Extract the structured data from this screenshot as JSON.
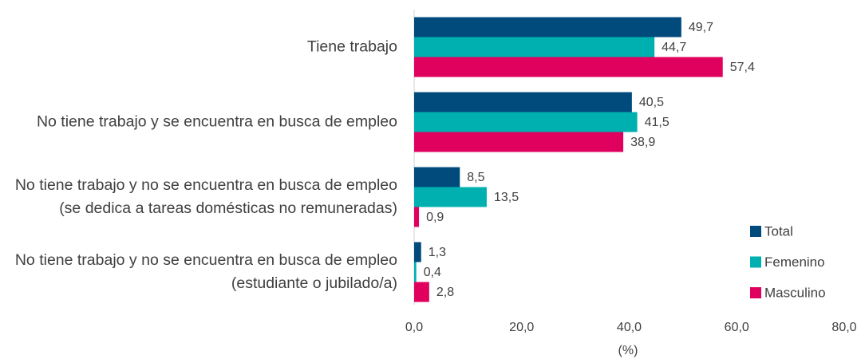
{
  "chart_data": {
    "type": "bar",
    "orientation": "horizontal",
    "categories": [
      "Tiene trabajo",
      "No tiene trabajo y se encuentra en busca de empleo",
      "No tiene trabajo y no se encuentra en busca de empleo (se dedica a tareas domésticas no remuneradas)",
      "No tiene trabajo y no se encuentra en busca de empleo (estudiante o jubilado/a)"
    ],
    "series": [
      {
        "name": "Total",
        "color": "#004b7c",
        "values": [
          49.7,
          40.5,
          8.5,
          1.3
        ],
        "value_labels": [
          "49,7",
          "40,5",
          "8,5",
          "1,3"
        ]
      },
      {
        "name": "Femenino",
        "color": "#00b0b0",
        "values": [
          44.7,
          41.5,
          13.5,
          0.4
        ],
        "value_labels": [
          "44,7",
          "41,5",
          "13,5",
          "0,4"
        ]
      },
      {
        "name": "Masculino",
        "color": "#e0005e",
        "values": [
          57.4,
          38.9,
          0.9,
          2.8
        ],
        "value_labels": [
          "57,4",
          "38,9",
          "0,9",
          "2,8"
        ]
      }
    ],
    "xlabel": "(%)",
    "xlim": [
      0,
      80
    ],
    "xticks": [
      {
        "value": 0,
        "label": "0,0"
      },
      {
        "value": 20,
        "label": "20,0"
      },
      {
        "value": 40,
        "label": "40,0"
      },
      {
        "value": 60,
        "label": "60,0"
      },
      {
        "value": 80,
        "label": "80,0"
      }
    ],
    "legend": "right"
  }
}
